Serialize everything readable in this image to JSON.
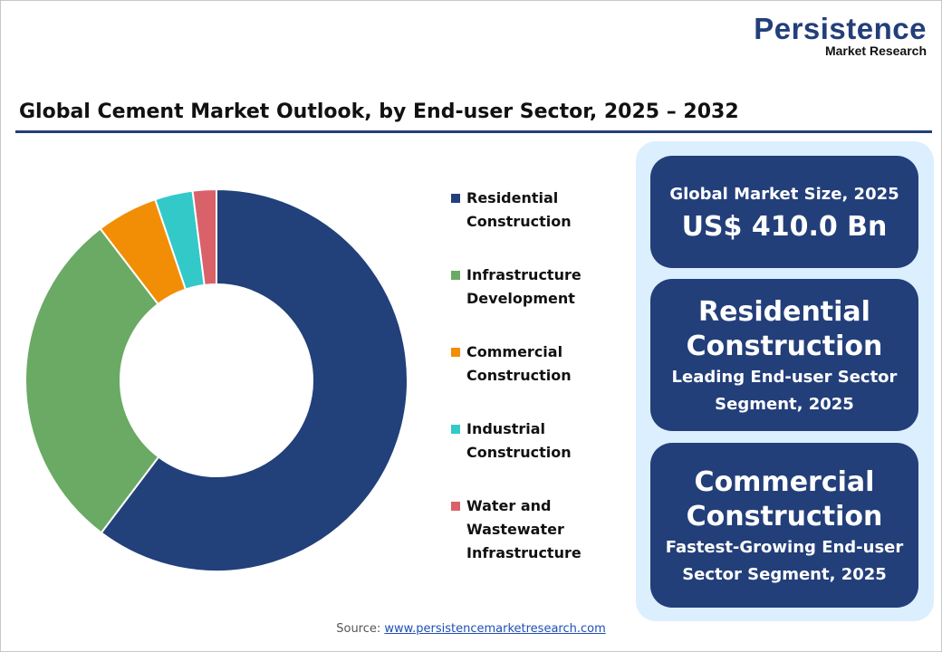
{
  "logo": {
    "line1": "Persistence",
    "line2": "Market Research"
  },
  "title": "Global Cement Market Outlook, by End-user Sector, 2025 – 2032",
  "chart_data": {
    "type": "pie",
    "donut": true,
    "title": "Global Cement Market Outlook, by End-user Sector, 2025 – 2032",
    "categories": [
      "Residential Construction",
      "Infrastructure Development",
      "Commercial Construction",
      "Industrial Construction",
      "Water and Wastewater Infrastructure"
    ],
    "values": [
      60.3,
      29.3,
      5.2,
      3.2,
      2.0
    ],
    "unit": "%",
    "colors": [
      "#22407a",
      "#6aaa64",
      "#f28e06",
      "#33c9c9",
      "#d9626a"
    ],
    "legend_position": "right"
  },
  "legend": [
    {
      "line1": "Residential",
      "line2": "Construction"
    },
    {
      "line1": "Infrastructure",
      "line2": "Development"
    },
    {
      "line1": "Commercial",
      "line2": "Construction"
    },
    {
      "line1": "Industrial",
      "line2": "Construction"
    },
    {
      "line1": "Water and",
      "line2": "Wastewater",
      "line3": "Infrastructure"
    }
  ],
  "cards": {
    "market": {
      "label": "Global Market Size, 2025",
      "value": "US$ 410.0 Bn"
    },
    "leading": {
      "name1": "Residential",
      "name2": "Construction",
      "desc1": "Leading End-user Sector",
      "desc2": "Segment, 2025"
    },
    "fastest": {
      "name1": "Commercial",
      "name2": "Construction",
      "desc1": "Fastest-Growing End-user",
      "desc2": "Sector Segment, 2025"
    }
  },
  "source": {
    "label": "Source:",
    "link": "www.persistencemarketresearch.com"
  }
}
